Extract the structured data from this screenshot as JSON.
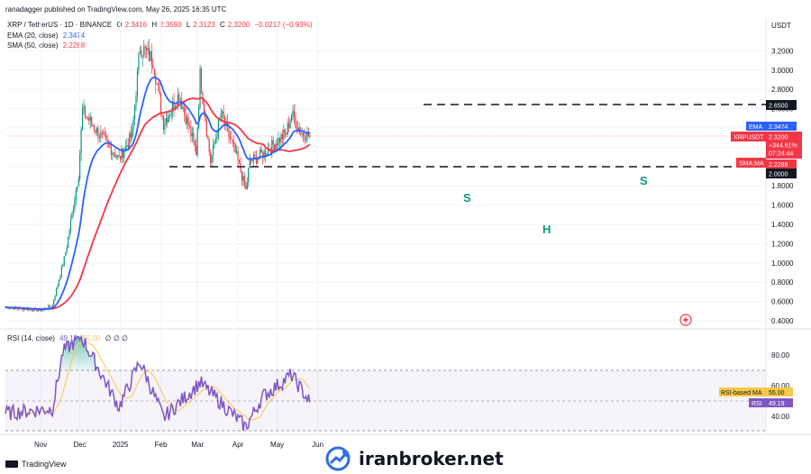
{
  "publisher": "ranadagger published on TradingView.com, May 26, 2025 16:35 UTC",
  "legend": {
    "symbol": "XRP / TetherUS · 1D · BINANCE",
    "o_label": "O",
    "o": "2.3416",
    "h_label": "H",
    "h": "2.3593",
    "l_label": "L",
    "l": "2.3123",
    "c_label": "C",
    "c": "2.3200",
    "change": "−0.0217 (−0.93%)",
    "ema_label": "EMA (20, close)",
    "ema_value": "2.3474",
    "sma_label": "SMA (50, close)",
    "sma_value": "2.2288",
    "rsi_label": "RSI (14, close)",
    "rsi_value": "49.19",
    "rsi_ma_value": "55.00",
    "rsi_extra": "∅ ∅ ∅"
  },
  "colors": {
    "up": "#089981",
    "down": "#f23645",
    "ema": "#2962ff",
    "sma": "#f23645",
    "rsi": "#7e57c2",
    "rsi_ma": "#f7c948",
    "dashed": "#131722",
    "pattern": "#089981"
  },
  "tags": {
    "usdt": "USDT",
    "ema": "EMA",
    "ema_val": "2.3474",
    "xrpusdt": "XRPUSDT",
    "price": "2.3200",
    "pct": "+344.61%",
    "countdown": "07:24:44",
    "smama": "SMA:MA",
    "sma_val": "2.2288",
    "line_top": "2.6500",
    "line_bottom": "2.0000",
    "rsi_ma_label": "RSI-based MA",
    "rsi_ma_val": "55.00",
    "rsi_label": "RSI",
    "rsi_val": "49.19"
  },
  "pattern_labels": {
    "left_s": "S",
    "head": "H",
    "right_s": "S"
  },
  "footer": {
    "brand": "TradingView"
  },
  "watermark": {
    "text": "iranbroker.net"
  },
  "chart_data": [
    {
      "type": "candlestick",
      "title": "XRP / TetherUS · 1D · BINANCE",
      "x_ticks": [
        "Nov",
        "Dec",
        "2025",
        "Feb",
        "Mar",
        "Apr",
        "May",
        "Jun"
      ],
      "y_ticks": [
        0.4,
        0.6,
        0.8,
        1.0,
        1.2,
        1.4,
        1.6,
        1.8,
        2.0,
        2.2,
        2.4,
        2.6,
        2.8,
        3.0,
        3.2
      ],
      "ylim": [
        0.3,
        3.5
      ],
      "approx_close_path": [
        {
          "x": "Oct 5",
          "y": 0.54
        },
        {
          "x": "Nov 1",
          "y": 0.51
        },
        {
          "x": "Nov 10",
          "y": 0.56
        },
        {
          "x": "Nov 20",
          "y": 1.1
        },
        {
          "x": "Nov 30",
          "y": 1.92
        },
        {
          "x": "Dec 3",
          "y": 2.58
        },
        {
          "x": "Dec 15",
          "y": 2.35
        },
        {
          "x": "Dec 31",
          "y": 2.08
        },
        {
          "x": "Jan 10",
          "y": 2.33
        },
        {
          "x": "Jan 16",
          "y": 3.25
        },
        {
          "x": "Jan 26",
          "y": 3.1
        },
        {
          "x": "Feb 3",
          "y": 2.45
        },
        {
          "x": "Feb 15",
          "y": 2.75
        },
        {
          "x": "Feb 28",
          "y": 2.15
        },
        {
          "x": "Mar 3",
          "y": 2.95
        },
        {
          "x": "Mar 11",
          "y": 2.05
        },
        {
          "x": "Mar 19",
          "y": 2.55
        },
        {
          "x": "Mar 31",
          "y": 2.1
        },
        {
          "x": "Apr 7",
          "y": 1.75
        },
        {
          "x": "Apr 10",
          "y": 2.05
        },
        {
          "x": "Apr 22",
          "y": 2.15
        },
        {
          "x": "May 8",
          "y": 2.35
        },
        {
          "x": "May 12",
          "y": 2.55
        },
        {
          "x": "May 19",
          "y": 2.35
        },
        {
          "x": "May 26",
          "y": 2.32
        }
      ],
      "series": [
        {
          "name": "EMA (20, close)",
          "last": 2.3474
        },
        {
          "name": "SMA (50, close)",
          "last": 2.2288
        }
      ],
      "horizontal_lines": [
        2.65,
        2.0
      ],
      "annotations": [
        "S",
        "H",
        "S"
      ]
    },
    {
      "type": "line",
      "title": "RSI (14, close)",
      "y_ticks": [
        40,
        60,
        80
      ],
      "ylim": [
        28,
        92
      ],
      "band": [
        30,
        70
      ],
      "approx_path": [
        {
          "x": "Oct 5",
          "y": 42
        },
        {
          "x": "Nov 10",
          "y": 45
        },
        {
          "x": "Nov 18",
          "y": 82
        },
        {
          "x": "Dec 2",
          "y": 92
        },
        {
          "x": "Dec 31",
          "y": 46
        },
        {
          "x": "Jan 16",
          "y": 76
        },
        {
          "x": "Feb 3",
          "y": 39
        },
        {
          "x": "Mar 3",
          "y": 62
        },
        {
          "x": "Apr 7",
          "y": 33
        },
        {
          "x": "Apr 20",
          "y": 53
        },
        {
          "x": "May 12",
          "y": 67
        },
        {
          "x": "May 26",
          "y": 49.19
        }
      ],
      "series": [
        {
          "name": "RSI",
          "last": 49.19
        },
        {
          "name": "RSI-based MA",
          "last": 55.0
        }
      ]
    }
  ]
}
